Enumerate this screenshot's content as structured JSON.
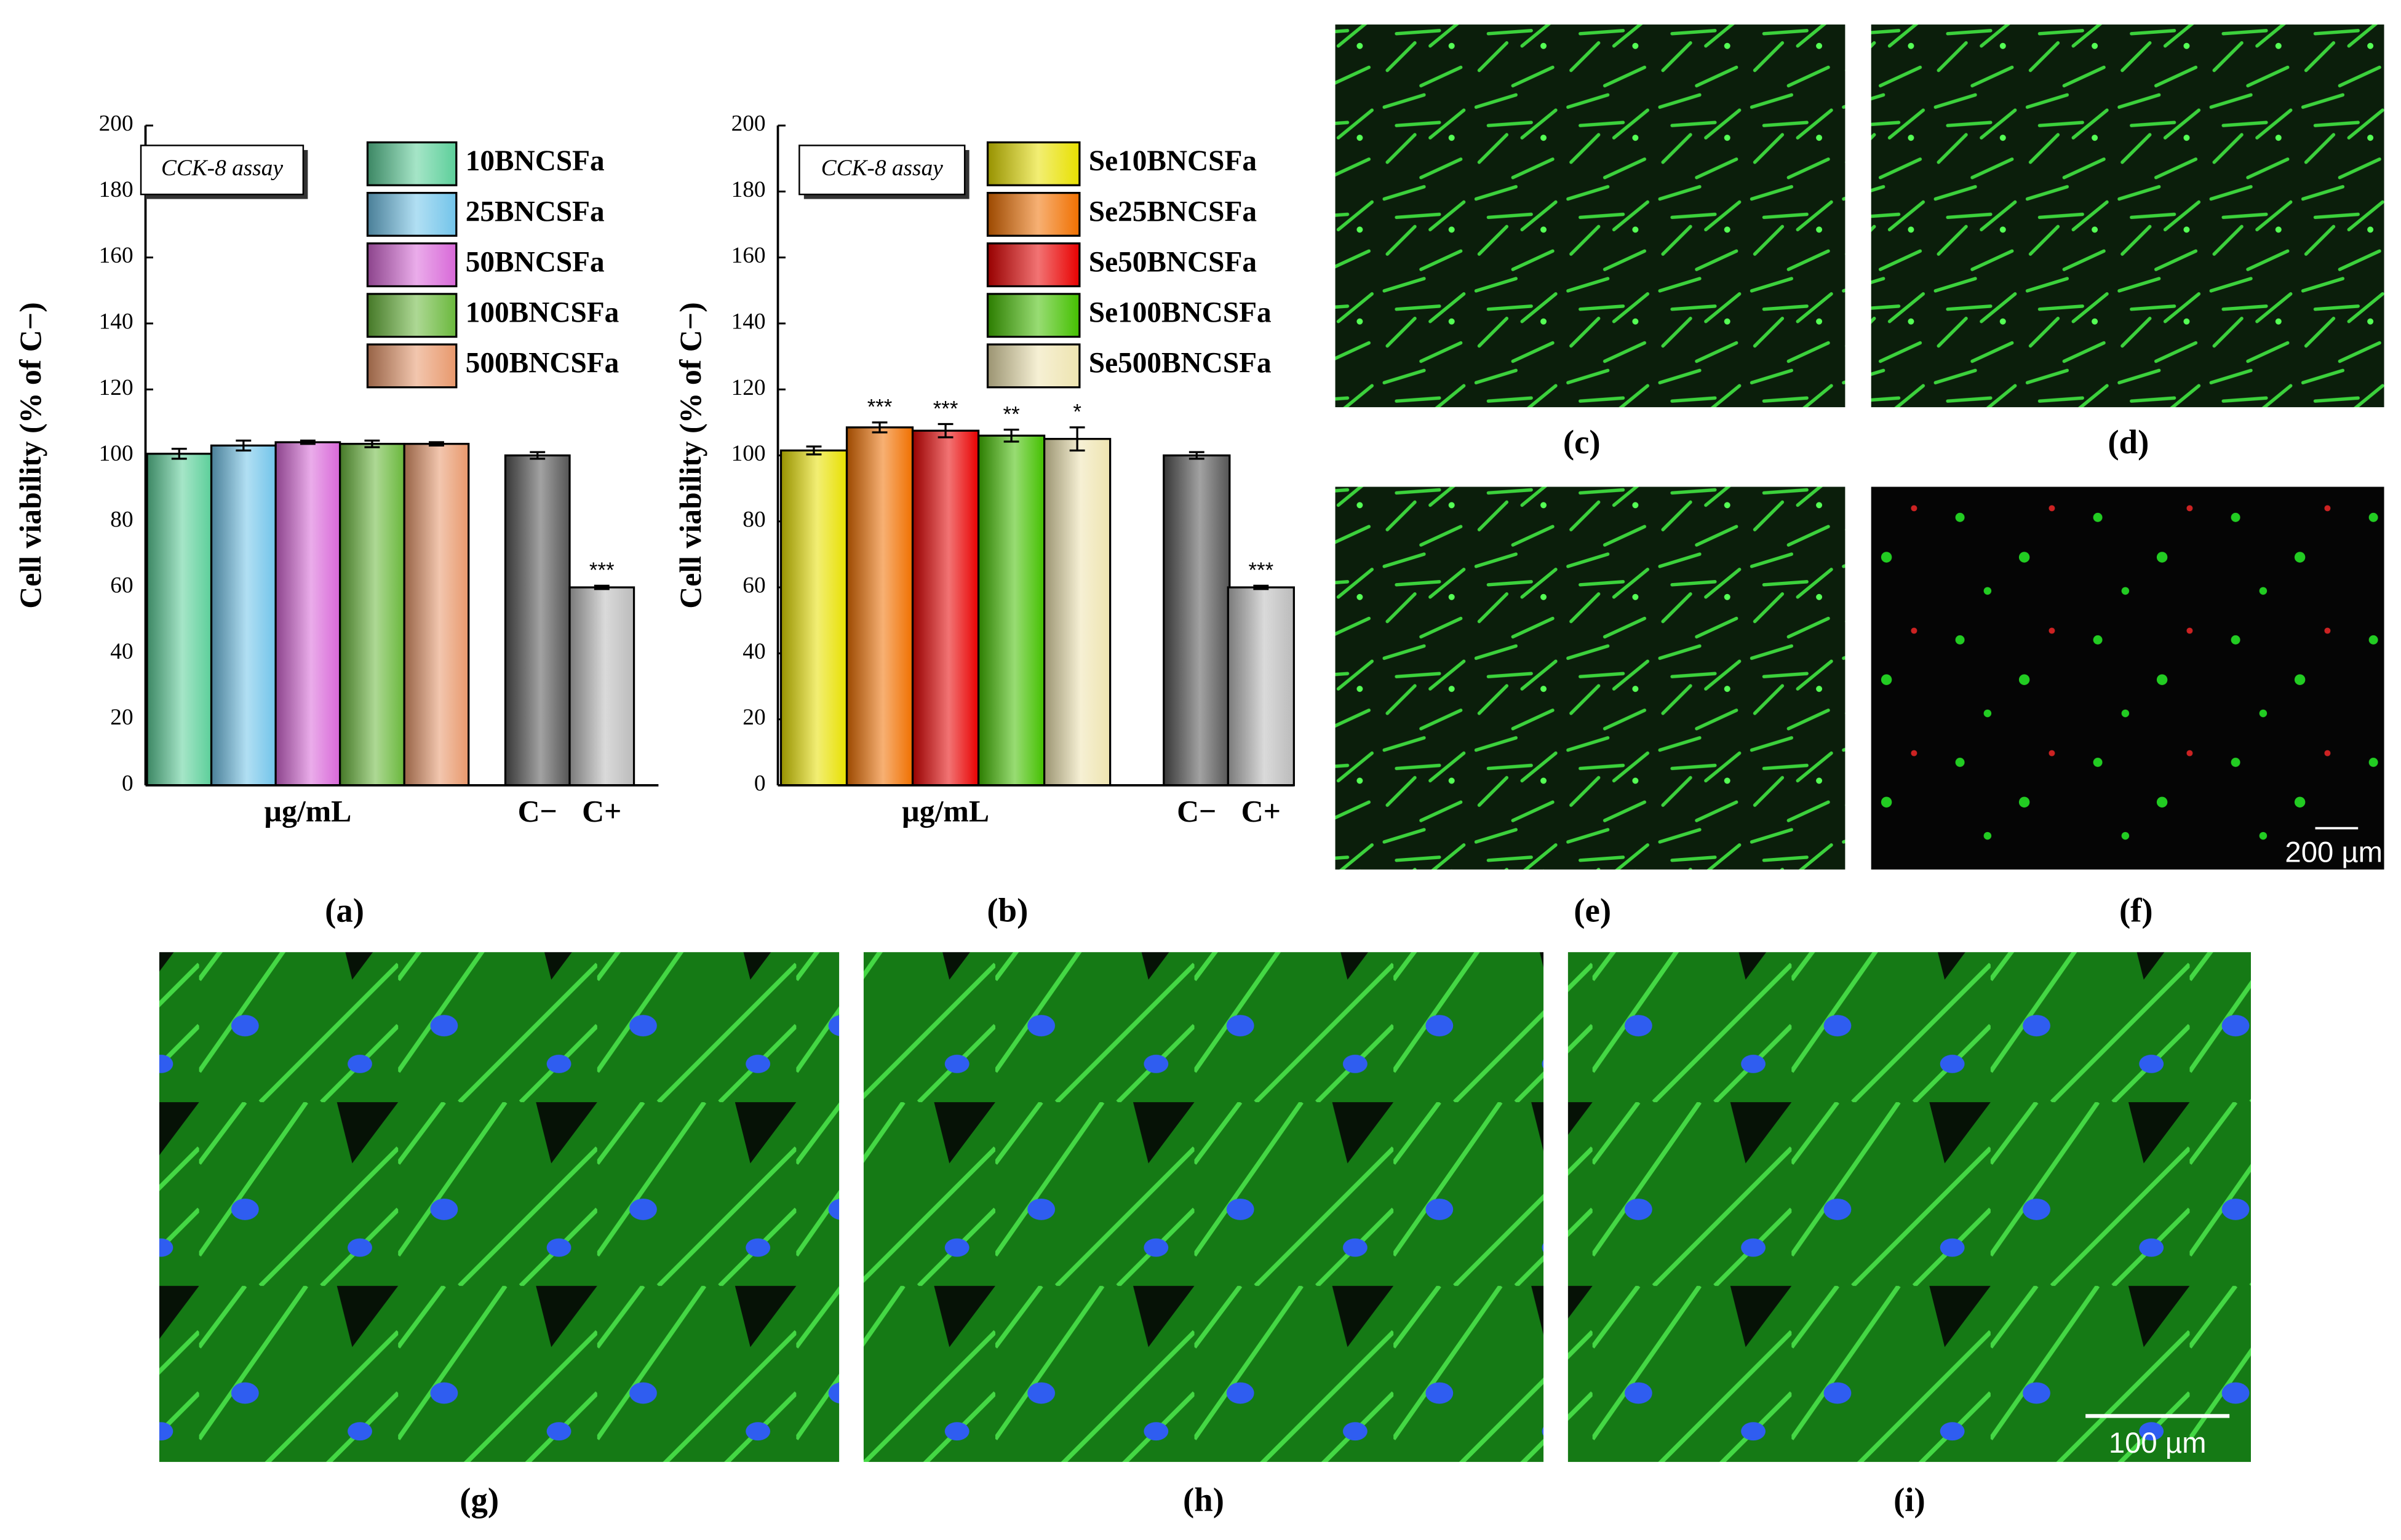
{
  "chart_data": [
    {
      "type": "bar",
      "annotation": "CCK-8 assay",
      "ylabel": "Cell viability (% of C−)",
      "xlabel": "µg/mL",
      "ylim": [
        0,
        200
      ],
      "yticks": [
        0,
        20,
        40,
        60,
        80,
        100,
        120,
        140,
        160,
        180,
        200
      ],
      "series": [
        {
          "name": "10BNCSFa",
          "color": "#5ccf9a",
          "values": [
            100.5
          ],
          "errors": [
            1.5
          ]
        },
        {
          "name": "25BNCSFa",
          "color": "#72c4ea",
          "values": [
            103
          ],
          "errors": [
            1.5
          ]
        },
        {
          "name": "50BNCSFa",
          "color": "#d868d8",
          "values": [
            104
          ],
          "errors": [
            0.5
          ]
        },
        {
          "name": "100BNCSFa",
          "color": "#6ab83c",
          "values": [
            103.5
          ],
          "errors": [
            1
          ]
        },
        {
          "name": "500BNCSFa",
          "color": "#e8986c",
          "values": [
            103.5
          ],
          "errors": [
            0.5
          ]
        }
      ],
      "controls": {
        "categories": [
          "C−",
          "C+"
        ],
        "values": [
          100,
          60
        ],
        "errors": [
          1,
          0.5
        ],
        "colors": [
          "#555555",
          "#bbbbbb"
        ],
        "significance": [
          null,
          "***"
        ],
        "significance_color": "#e82020"
      }
    },
    {
      "type": "bar",
      "annotation": "CCK-8 assay",
      "ylabel": "Cell viability (% of C−)",
      "xlabel": "µg/mL",
      "ylim": [
        0,
        200
      ],
      "yticks": [
        0,
        20,
        40,
        60,
        80,
        100,
        120,
        140,
        160,
        180,
        200
      ],
      "series": [
        {
          "name": "Se10BNCSFa",
          "color": "#e8e000",
          "values": [
            101.5
          ],
          "errors": [
            1.2
          ],
          "significance": [
            null
          ]
        },
        {
          "name": "Se25BNCSFa",
          "color": "#f07000",
          "values": [
            108.5
          ],
          "errors": [
            1.5
          ],
          "significance": [
            "***"
          ]
        },
        {
          "name": "Se50BNCSFa",
          "color": "#e80000",
          "values": [
            107.5
          ],
          "errors": [
            2
          ],
          "significance": [
            "***"
          ]
        },
        {
          "name": "Se100BNCSFa",
          "color": "#44c000",
          "values": [
            106
          ],
          "errors": [
            1.8
          ],
          "significance": [
            "**"
          ]
        },
        {
          "name": "Se500BNCSFa",
          "color": "#eee4b0",
          "values": [
            105
          ],
          "errors": [
            3.5
          ],
          "significance": [
            "*"
          ]
        }
      ],
      "controls": {
        "categories": [
          "C−",
          "C+"
        ],
        "values": [
          100,
          60
        ],
        "errors": [
          1,
          0.5
        ],
        "colors": [
          "#555555",
          "#bbbbbb"
        ],
        "significance": [
          null,
          "***"
        ],
        "significance_color": "#e82020"
      }
    }
  ],
  "panel_labels": [
    "(a)",
    "(b)",
    "(c)",
    "(d)",
    "(e)",
    "(f)",
    "(g)",
    "(h)",
    "(i)"
  ],
  "scale_bars": [
    "200 µm",
    "100 µm"
  ]
}
